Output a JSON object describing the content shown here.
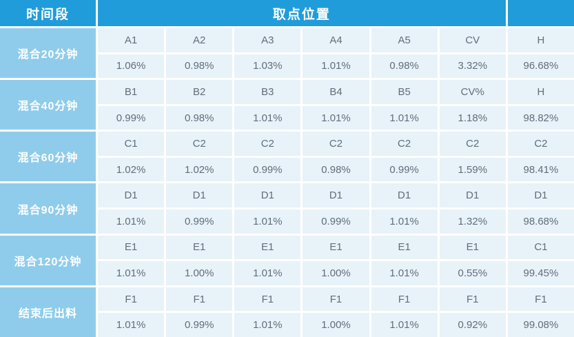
{
  "chart_data": {
    "type": "table",
    "header": {
      "time_col": "时间段",
      "position_col": "取点位置",
      "extra_col": ""
    },
    "groups": [
      {
        "label": "混合20分钟",
        "points": [
          "A1",
          "A2",
          "A3",
          "A4",
          "A5",
          "CV",
          "H"
        ],
        "values": [
          "1.06%",
          "0.98%",
          "1.03%",
          "1.01%",
          "0.98%",
          "3.32%",
          "96.68%"
        ]
      },
      {
        "label": "混合40分钟",
        "points": [
          "B1",
          "B2",
          "B3",
          "B4",
          "B5",
          "CV%",
          "H"
        ],
        "values": [
          "0.99%",
          "0.98%",
          "1.01%",
          "1.01%",
          "1.01%",
          "1.18%",
          "98.82%"
        ]
      },
      {
        "label": "混合60分钟",
        "points": [
          "C1",
          "C2",
          "C2",
          "C2",
          "C2",
          "C2",
          "C2"
        ],
        "values": [
          "1.02%",
          "1.02%",
          "0.99%",
          "0.98%",
          "0.99%",
          "1.59%",
          "98.41%"
        ]
      },
      {
        "label": "混合90分钟",
        "points": [
          "D1",
          "D1",
          "D1",
          "D1",
          "D1",
          "D1",
          "D1"
        ],
        "values": [
          "1.01%",
          "0.99%",
          "1.01%",
          "0.99%",
          "1.01%",
          "1.32%",
          "98.68%"
        ]
      },
      {
        "label": "混合120分钟",
        "points": [
          "E1",
          "E1",
          "E1",
          "E1",
          "E1",
          "E1",
          "C1"
        ],
        "values": [
          "1.01%",
          "1.00%",
          "1.01%",
          "1.00%",
          "1.01%",
          "0.55%",
          "99.45%"
        ]
      },
      {
        "label": "结束后出料",
        "points": [
          "F1",
          "F1",
          "F1",
          "F1",
          "F1",
          "F1",
          "F1"
        ],
        "values": [
          "1.01%",
          "0.99%",
          "1.01%",
          "1.00%",
          "1.01%",
          "0.92%",
          "99.08%"
        ]
      }
    ]
  },
  "colors": {
    "header_bg": "#219CDA",
    "group_label_bg": "#8FCCEC",
    "cell_bg": "#E8F2F9",
    "grid_line": "#FFFFFF",
    "header_text": "#FFFFFF",
    "cell_text": "#5F6E7A"
  }
}
